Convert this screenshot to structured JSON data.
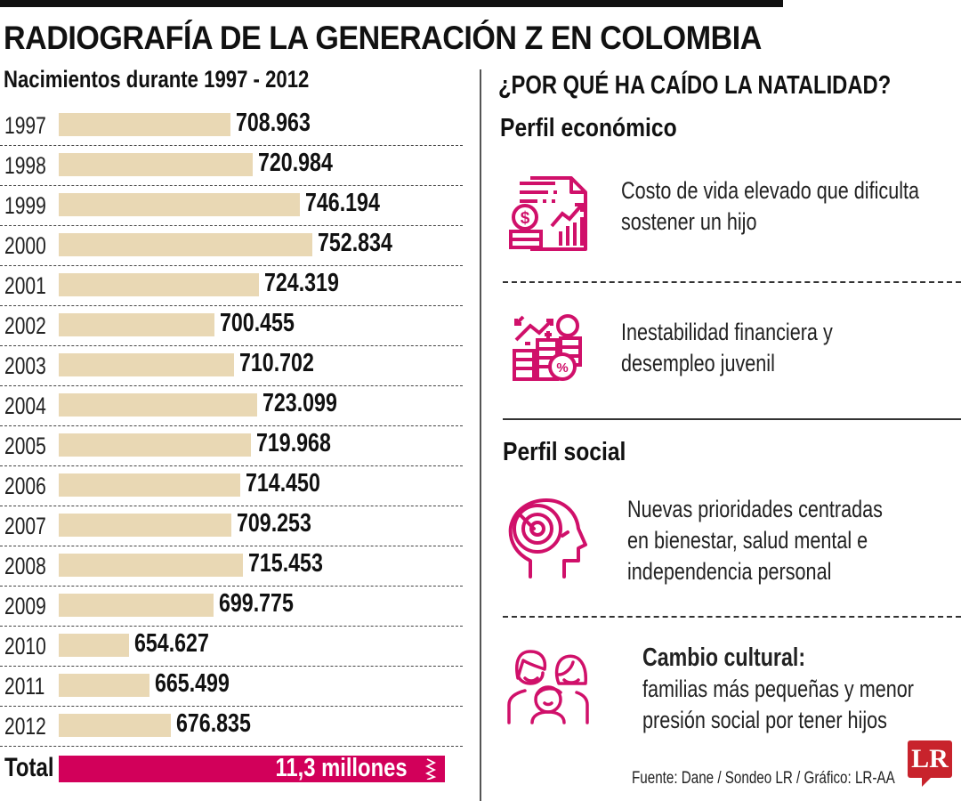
{
  "header": {
    "title": "RADIOGRAFÍA DE LA GENERACIÓN Z EN COLOMBIA",
    "subtitle": "Nacimientos durante 1997 - 2012"
  },
  "chart_data": {
    "type": "bar",
    "orientation": "horizontal",
    "title": "Nacimientos durante 1997 - 2012",
    "xlabel": "",
    "ylabel": "",
    "categories": [
      "1997",
      "1998",
      "1999",
      "2000",
      "2001",
      "2002",
      "2003",
      "2004",
      "2005",
      "2006",
      "2007",
      "2008",
      "2009",
      "2010",
      "2011",
      "2012"
    ],
    "values": [
      708963,
      720984,
      746194,
      752834,
      724319,
      700455,
      710702,
      723099,
      719968,
      714450,
      709253,
      715453,
      699775,
      654627,
      665499,
      676835
    ],
    "value_labels": [
      "708.963",
      "720.984",
      "746.194",
      "752.834",
      "724.319",
      "700.455",
      "710.702",
      "723.099",
      "719.968",
      "714.450",
      "709.253",
      "715.453",
      "699.775",
      "654.627",
      "665.499",
      "676.835"
    ],
    "xlim": [
      617000,
      760000
    ],
    "grid": false,
    "bar_color": "#e9d8b4",
    "total": {
      "label": "Total",
      "value_text": "11,3 millones",
      "color": "#d2005a"
    }
  },
  "right": {
    "title": "¿POR QUÉ HA CAÍDO LA NATALIDAD?",
    "sections": [
      {
        "heading": "Perfil económico",
        "items": [
          {
            "icon": "financial-report-icon",
            "lines": [
              "Costo de vida elevado que dificulta",
              "sostener un hijo"
            ]
          },
          {
            "icon": "coins-volatility-icon",
            "lines": [
              "Inestabilidad financiera y",
              "desempleo juvenil"
            ]
          }
        ]
      },
      {
        "heading": "Perfil social",
        "items": [
          {
            "icon": "head-wellbeing-icon",
            "lines": [
              "Nuevas prioridades centradas",
              "en bienestar, salud mental e",
              "independencia personal"
            ]
          },
          {
            "icon": "family-icon",
            "lead": "Cambio cultural:",
            "lines": [
              "familias más pequeñas y menor",
              "presión social por tener hijos"
            ]
          }
        ]
      }
    ]
  },
  "footer": {
    "source": "Fuente: Dane / Sondeo LR / Gráfico: LR-AA",
    "logo": "LR"
  },
  "colors": {
    "accent": "#d2005a",
    "icon": "#d0106a",
    "bar": "#e9d8b4",
    "logo": "#c8232c"
  }
}
